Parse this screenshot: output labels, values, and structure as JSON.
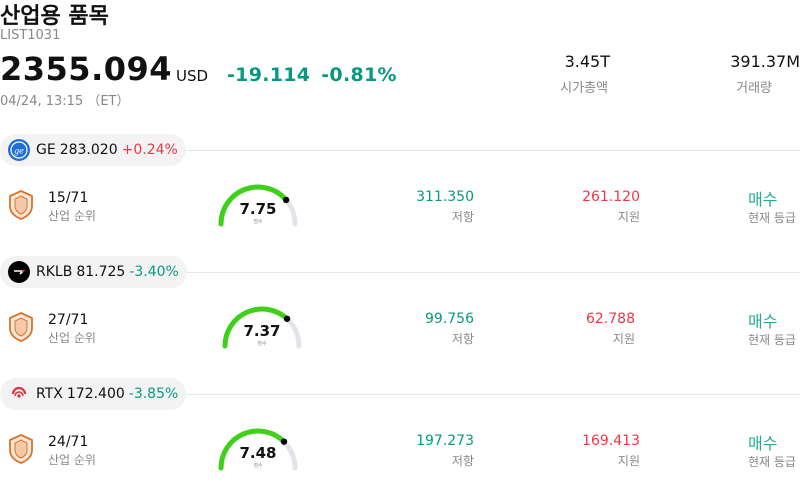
{
  "header": {
    "title": "산업용 품목",
    "symbol": "LIST1031",
    "price": "2355.094",
    "currency": "USD",
    "change": "-19.114",
    "change_pct": "-0.81%",
    "time": "04/24, 13:15 （ET）",
    "market_cap": {
      "value": "3.45T",
      "label": "시가총액"
    },
    "volume": {
      "value": "391.37M",
      "label": "거래량"
    }
  },
  "colors": {
    "positive": "#f23645",
    "negative": "#089981",
    "gauge": "#3fd11a",
    "rating": "#22ab94"
  },
  "stocks": [
    {
      "ticker": "GE",
      "price": "283.020",
      "change": "+0.24%",
      "direction": "up",
      "logo": "ge-logo",
      "rank": "15/71",
      "rank_label": "산업 순위",
      "score": "7.75",
      "score_value": 7.75,
      "score_label": "점수",
      "resistance": "311.350",
      "resistance_label": "저항",
      "support": "261.120",
      "support_label": "지원",
      "rating": "매수",
      "rating_label": "현재 등급"
    },
    {
      "ticker": "RKLB",
      "price": "81.725",
      "change": "-3.40%",
      "direction": "down",
      "logo": "rklb-logo",
      "rank": "27/71",
      "rank_label": "산업 순위",
      "score": "7.37",
      "score_value": 7.37,
      "score_label": "점수",
      "resistance": "99.756",
      "resistance_label": "저항",
      "support": "62.788",
      "support_label": "지원",
      "rating": "매수",
      "rating_label": "현재 등급"
    },
    {
      "ticker": "RTX",
      "price": "172.400",
      "change": "-3.85%",
      "direction": "down",
      "logo": "rtx-logo",
      "rank": "24/71",
      "rank_label": "산업 순위",
      "score": "7.48",
      "score_value": 7.48,
      "score_label": "점수",
      "resistance": "197.273",
      "resistance_label": "저항",
      "support": "169.413",
      "support_label": "지원",
      "rating": "매수",
      "rating_label": "현재 등급"
    }
  ]
}
